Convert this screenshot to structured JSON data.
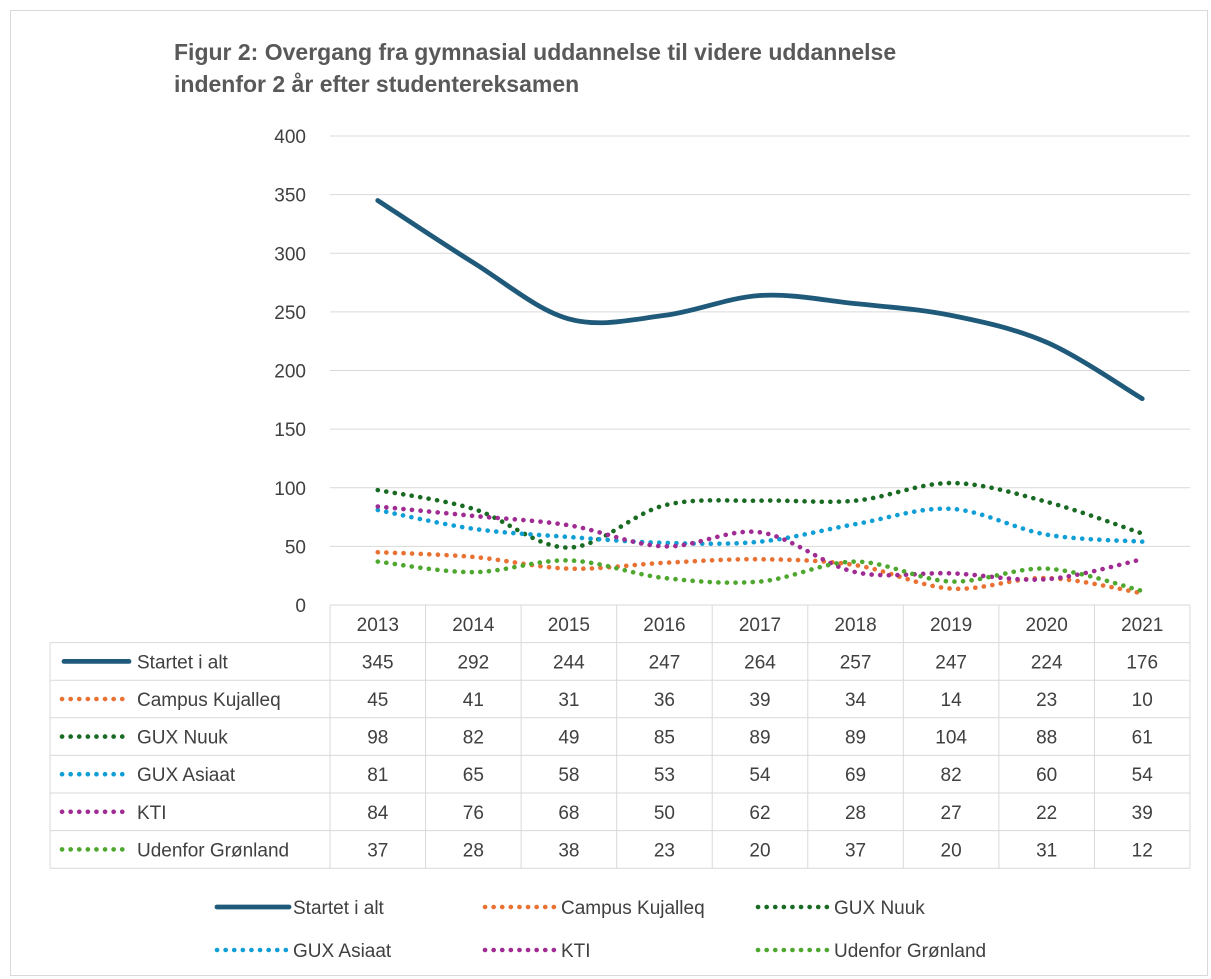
{
  "chart_data": {
    "type": "line",
    "title_line1": "Figur 2: Overgang fra gymnasial uddannelse til videre uddannelse",
    "title_line2": "indenfor 2 år efter studentereksamen",
    "categories": [
      "2013",
      "2014",
      "2015",
      "2016",
      "2017",
      "2018",
      "2019",
      "2020",
      "2021"
    ],
    "ylim": [
      0,
      400
    ],
    "yticks": [
      "0",
      "50",
      "100",
      "150",
      "200",
      "250",
      "300",
      "350",
      "400"
    ],
    "grid": true,
    "smooth": true,
    "data_table": true,
    "legend_position": "bottom",
    "series": [
      {
        "name": "Startet i alt",
        "values": [
          345,
          292,
          244,
          247,
          264,
          257,
          247,
          224,
          176
        ],
        "color": "#1f5a7a",
        "style": "solid"
      },
      {
        "name": "Campus Kujalleq",
        "values": [
          45,
          41,
          31,
          36,
          39,
          34,
          14,
          23,
          10
        ],
        "color": "#e97132",
        "style": "dotted"
      },
      {
        "name": "GUX Nuuk",
        "values": [
          98,
          82,
          49,
          85,
          89,
          89,
          104,
          88,
          61
        ],
        "color": "#196b24",
        "style": "dotted"
      },
      {
        "name": "GUX Asiaat",
        "values": [
          81,
          65,
          58,
          53,
          54,
          69,
          82,
          60,
          54
        ],
        "color": "#0f9ed5",
        "style": "dotted"
      },
      {
        "name": "KTI",
        "values": [
          84,
          76,
          68,
          50,
          62,
          28,
          27,
          22,
          39
        ],
        "color": "#a02b93",
        "style": "dotted"
      },
      {
        "name": "Udenfor Grønland",
        "values": [
          37,
          28,
          38,
          23,
          20,
          37,
          20,
          31,
          12
        ],
        "color": "#4ea72e",
        "style": "dotted"
      }
    ]
  }
}
